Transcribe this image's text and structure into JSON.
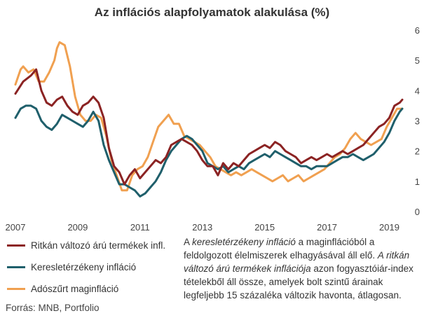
{
  "chart_data": {
    "type": "line",
    "title": "Az inflációs alapfolyamatok alakulása (%)",
    "xlabel": "",
    "ylabel": "",
    "x_start": "2007-01",
    "x_end": "2019-06",
    "xlim": [
      "2007-01",
      "2019-06"
    ],
    "ylim": [
      0,
      6
    ],
    "y_ticks": [
      "0",
      "1",
      "2",
      "3",
      "4",
      "5",
      "6"
    ],
    "x_ticks": [
      {
        "label": "2007",
        "date": "2007-01"
      },
      {
        "label": "2009",
        "date": "2009-01"
      },
      {
        "label": "2011",
        "date": "2011-01"
      },
      {
        "label": "2013",
        "date": "2013-01"
      },
      {
        "label": "2015",
        "date": "2015-01"
      },
      {
        "label": "2017",
        "date": "2017-01"
      },
      {
        "label": "2019",
        "date": "2019-01"
      }
    ],
    "grid": false,
    "y_axis_side": "right",
    "legend_position": "bottom-left",
    "series": [
      {
        "name": "Ritkán változó árú termékek infl.",
        "color": "#8b2323",
        "points": [
          [
            "2007-01",
            3.9
          ],
          [
            "2007-04",
            4.3
          ],
          [
            "2007-07",
            4.5
          ],
          [
            "2007-09",
            4.7
          ],
          [
            "2007-11",
            4.0
          ],
          [
            "2008-01",
            3.6
          ],
          [
            "2008-03",
            3.5
          ],
          [
            "2008-05",
            3.7
          ],
          [
            "2008-07",
            3.8
          ],
          [
            "2008-09",
            3.5
          ],
          [
            "2008-11",
            3.3
          ],
          [
            "2009-01",
            3.2
          ],
          [
            "2009-03",
            3.5
          ],
          [
            "2009-05",
            3.6
          ],
          [
            "2009-07",
            3.8
          ],
          [
            "2009-09",
            3.6
          ],
          [
            "2009-11",
            3.1
          ],
          [
            "2010-01",
            2.1
          ],
          [
            "2010-03",
            1.5
          ],
          [
            "2010-05",
            1.3
          ],
          [
            "2010-07",
            0.9
          ],
          [
            "2010-09",
            1.2
          ],
          [
            "2010-11",
            1.4
          ],
          [
            "2011-01",
            1.1
          ],
          [
            "2011-03",
            1.3
          ],
          [
            "2011-05",
            1.5
          ],
          [
            "2011-07",
            1.7
          ],
          [
            "2011-09",
            1.6
          ],
          [
            "2011-11",
            1.8
          ],
          [
            "2012-01",
            2.2
          ],
          [
            "2012-03",
            2.3
          ],
          [
            "2012-05",
            2.4
          ],
          [
            "2012-07",
            2.3
          ],
          [
            "2012-09",
            2.2
          ],
          [
            "2012-11",
            2.0
          ],
          [
            "2013-01",
            1.7
          ],
          [
            "2013-03",
            1.5
          ],
          [
            "2013-05",
            1.5
          ],
          [
            "2013-07",
            1.2
          ],
          [
            "2013-09",
            1.6
          ],
          [
            "2013-11",
            1.4
          ],
          [
            "2014-01",
            1.6
          ],
          [
            "2014-03",
            1.5
          ],
          [
            "2014-05",
            1.7
          ],
          [
            "2014-07",
            1.9
          ],
          [
            "2014-09",
            2.0
          ],
          [
            "2014-11",
            2.1
          ],
          [
            "2015-01",
            2.2
          ],
          [
            "2015-03",
            2.1
          ],
          [
            "2015-05",
            2.3
          ],
          [
            "2015-07",
            2.2
          ],
          [
            "2015-09",
            2.0
          ],
          [
            "2015-11",
            1.9
          ],
          [
            "2016-01",
            1.8
          ],
          [
            "2016-03",
            1.6
          ],
          [
            "2016-05",
            1.7
          ],
          [
            "2016-07",
            1.8
          ],
          [
            "2016-09",
            1.7
          ],
          [
            "2016-11",
            1.8
          ],
          [
            "2017-01",
            1.9
          ],
          [
            "2017-03",
            1.8
          ],
          [
            "2017-05",
            1.9
          ],
          [
            "2017-07",
            2.0
          ],
          [
            "2017-09",
            1.9
          ],
          [
            "2017-11",
            2.0
          ],
          [
            "2018-01",
            2.1
          ],
          [
            "2018-03",
            2.2
          ],
          [
            "2018-05",
            2.4
          ],
          [
            "2018-07",
            2.6
          ],
          [
            "2018-09",
            2.8
          ],
          [
            "2018-11",
            2.9
          ],
          [
            "2019-01",
            3.1
          ],
          [
            "2019-03",
            3.5
          ],
          [
            "2019-05",
            3.6
          ],
          [
            "2019-06",
            3.7
          ]
        ]
      },
      {
        "name": "Keresletérzékeny infláció",
        "color": "#1f5f6b",
        "points": [
          [
            "2007-01",
            3.1
          ],
          [
            "2007-03",
            3.4
          ],
          [
            "2007-05",
            3.5
          ],
          [
            "2007-07",
            3.5
          ],
          [
            "2007-09",
            3.4
          ],
          [
            "2007-11",
            3.0
          ],
          [
            "2008-01",
            2.8
          ],
          [
            "2008-03",
            2.7
          ],
          [
            "2008-05",
            2.9
          ],
          [
            "2008-07",
            3.2
          ],
          [
            "2008-09",
            3.1
          ],
          [
            "2008-11",
            3.0
          ],
          [
            "2009-01",
            2.9
          ],
          [
            "2009-03",
            2.8
          ],
          [
            "2009-05",
            3.0
          ],
          [
            "2009-07",
            3.3
          ],
          [
            "2009-09",
            3.0
          ],
          [
            "2009-11",
            2.2
          ],
          [
            "2010-01",
            1.7
          ],
          [
            "2010-03",
            1.3
          ],
          [
            "2010-05",
            0.9
          ],
          [
            "2010-07",
            0.9
          ],
          [
            "2010-09",
            0.8
          ],
          [
            "2010-11",
            0.7
          ],
          [
            "2011-01",
            0.5
          ],
          [
            "2011-03",
            0.6
          ],
          [
            "2011-05",
            0.8
          ],
          [
            "2011-07",
            1.0
          ],
          [
            "2011-09",
            1.3
          ],
          [
            "2011-11",
            1.7
          ],
          [
            "2012-01",
            2.0
          ],
          [
            "2012-03",
            2.2
          ],
          [
            "2012-05",
            2.4
          ],
          [
            "2012-07",
            2.5
          ],
          [
            "2012-09",
            2.4
          ],
          [
            "2012-11",
            2.2
          ],
          [
            "2013-01",
            2.0
          ],
          [
            "2013-03",
            1.6
          ],
          [
            "2013-05",
            1.5
          ],
          [
            "2013-07",
            1.4
          ],
          [
            "2013-09",
            1.5
          ],
          [
            "2013-11",
            1.3
          ],
          [
            "2014-01",
            1.4
          ],
          [
            "2014-03",
            1.5
          ],
          [
            "2014-05",
            1.4
          ],
          [
            "2014-07",
            1.6
          ],
          [
            "2014-09",
            1.7
          ],
          [
            "2014-11",
            1.8
          ],
          [
            "2015-01",
            1.9
          ],
          [
            "2015-03",
            1.8
          ],
          [
            "2015-05",
            2.0
          ],
          [
            "2015-07",
            1.9
          ],
          [
            "2015-09",
            1.8
          ],
          [
            "2015-11",
            1.7
          ],
          [
            "2016-01",
            1.6
          ],
          [
            "2016-03",
            1.5
          ],
          [
            "2016-05",
            1.5
          ],
          [
            "2016-07",
            1.4
          ],
          [
            "2016-09",
            1.5
          ],
          [
            "2016-11",
            1.5
          ],
          [
            "2017-01",
            1.5
          ],
          [
            "2017-03",
            1.6
          ],
          [
            "2017-05",
            1.7
          ],
          [
            "2017-07",
            1.8
          ],
          [
            "2017-09",
            1.8
          ],
          [
            "2017-11",
            1.9
          ],
          [
            "2018-01",
            1.8
          ],
          [
            "2018-03",
            1.7
          ],
          [
            "2018-05",
            1.8
          ],
          [
            "2018-07",
            1.9
          ],
          [
            "2018-09",
            2.1
          ],
          [
            "2018-11",
            2.3
          ],
          [
            "2019-01",
            2.6
          ],
          [
            "2019-03",
            3.0
          ],
          [
            "2019-05",
            3.3
          ],
          [
            "2019-06",
            3.4
          ]
        ]
      },
      {
        "name": "Adószűrt maginfláció",
        "color": "#f0a050",
        "points": [
          [
            "2007-01",
            4.2
          ],
          [
            "2007-03",
            4.7
          ],
          [
            "2007-04",
            4.8
          ],
          [
            "2007-06",
            4.6
          ],
          [
            "2007-08",
            4.7
          ],
          [
            "2007-10",
            4.3
          ],
          [
            "2007-12",
            4.3
          ],
          [
            "2008-02",
            4.6
          ],
          [
            "2008-04",
            5.0
          ],
          [
            "2008-05",
            5.4
          ],
          [
            "2008-06",
            5.6
          ],
          [
            "2008-08",
            5.5
          ],
          [
            "2008-10",
            4.8
          ],
          [
            "2008-12",
            3.8
          ],
          [
            "2009-02",
            3.2
          ],
          [
            "2009-04",
            3.0
          ],
          [
            "2009-06",
            3.0
          ],
          [
            "2009-08",
            3.2
          ],
          [
            "2009-10",
            3.1
          ],
          [
            "2009-12",
            2.5
          ],
          [
            "2010-02",
            1.7
          ],
          [
            "2010-04",
            1.2
          ],
          [
            "2010-06",
            0.7
          ],
          [
            "2010-08",
            0.7
          ],
          [
            "2010-10",
            1.2
          ],
          [
            "2010-12",
            1.4
          ],
          [
            "2011-02",
            1.5
          ],
          [
            "2011-04",
            1.8
          ],
          [
            "2011-06",
            2.3
          ],
          [
            "2011-08",
            2.8
          ],
          [
            "2011-10",
            3.0
          ],
          [
            "2011-12",
            3.2
          ],
          [
            "2012-02",
            2.9
          ],
          [
            "2012-04",
            2.9
          ],
          [
            "2012-06",
            2.5
          ],
          [
            "2012-08",
            2.4
          ],
          [
            "2012-10",
            2.3
          ],
          [
            "2012-12",
            2.2
          ],
          [
            "2013-02",
            2.0
          ],
          [
            "2013-04",
            1.8
          ],
          [
            "2013-06",
            1.5
          ],
          [
            "2013-08",
            1.4
          ],
          [
            "2013-10",
            1.3
          ],
          [
            "2013-12",
            1.2
          ],
          [
            "2014-02",
            1.3
          ],
          [
            "2014-04",
            1.2
          ],
          [
            "2014-06",
            1.3
          ],
          [
            "2014-08",
            1.4
          ],
          [
            "2014-10",
            1.3
          ],
          [
            "2014-12",
            1.2
          ],
          [
            "2015-02",
            1.1
          ],
          [
            "2015-04",
            1.0
          ],
          [
            "2015-06",
            1.1
          ],
          [
            "2015-08",
            1.2
          ],
          [
            "2015-10",
            1.0
          ],
          [
            "2015-12",
            1.1
          ],
          [
            "2016-02",
            1.2
          ],
          [
            "2016-04",
            1.0
          ],
          [
            "2016-06",
            1.1
          ],
          [
            "2016-08",
            1.2
          ],
          [
            "2016-10",
            1.3
          ],
          [
            "2016-12",
            1.4
          ],
          [
            "2017-02",
            1.6
          ],
          [
            "2017-04",
            1.8
          ],
          [
            "2017-06",
            1.9
          ],
          [
            "2017-08",
            2.1
          ],
          [
            "2017-10",
            2.4
          ],
          [
            "2017-12",
            2.6
          ],
          [
            "2018-02",
            2.4
          ],
          [
            "2018-04",
            2.3
          ],
          [
            "2018-06",
            2.2
          ],
          [
            "2018-08",
            2.3
          ],
          [
            "2018-10",
            2.4
          ],
          [
            "2018-12",
            2.8
          ],
          [
            "2019-02",
            3.1
          ],
          [
            "2019-04",
            3.4
          ],
          [
            "2019-06",
            3.4
          ]
        ]
      }
    ]
  },
  "source": "Forrás: MNB, Portfolio",
  "note": {
    "p1": "A ",
    "p2": "keresletérzékeny infláció",
    "p3": " a maginflációból a feldolgozott élelmiszerek elhagyásával áll elő. ",
    "p4": "A ritkán változó árú termékek inflációja",
    "p5": " azon fogyasztóiár-index tételekből áll össze, amelyek bolt szintű árainak legfeljebb 15 százaléka változik havonta, átlagosan."
  }
}
